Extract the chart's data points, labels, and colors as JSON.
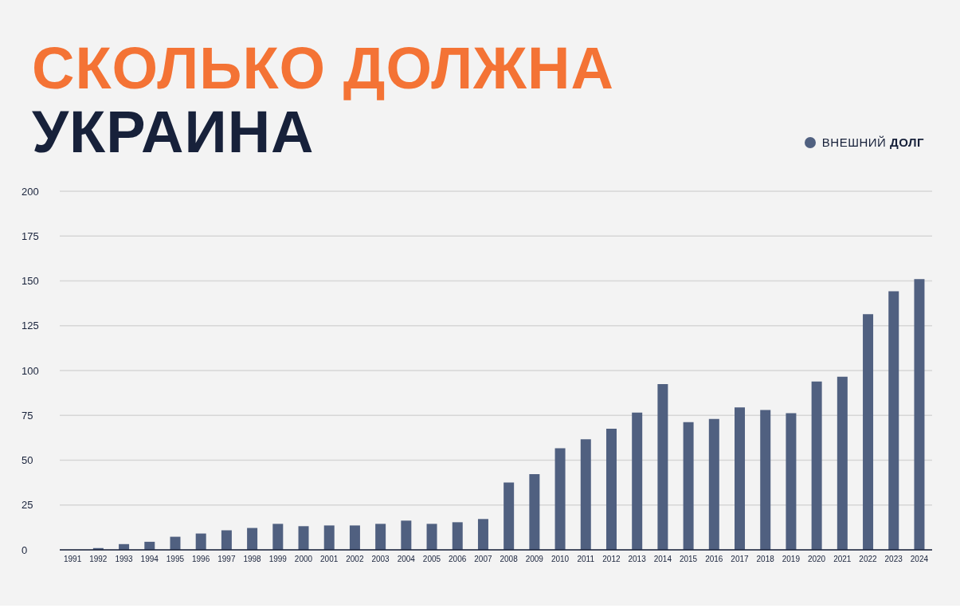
{
  "chart_data": {
    "type": "bar",
    "title": "СКОЛЬКО ДОЛЖНА",
    "subtitle": "УКРАИНА",
    "categories": [
      "1991",
      "1992",
      "1993",
      "1994",
      "1995",
      "1996",
      "1997",
      "1998",
      "1999",
      "2000",
      "2001",
      "2002",
      "2003",
      "2004",
      "2005",
      "2006",
      "2007",
      "2008",
      "2009",
      "2010",
      "2011",
      "2012",
      "2013",
      "2014",
      "2015",
      "2016",
      "2017",
      "2018",
      "2019",
      "2020",
      "2021",
      "2022",
      "2023",
      "2024"
    ],
    "series": [
      {
        "name": "ВНЕШНИЙ ДОЛГ",
        "color": "#506080",
        "values": [
          0,
          1,
          3.2,
          4.5,
          7.3,
          9.1,
          10.9,
          12.2,
          14.5,
          13.2,
          13.6,
          13.6,
          14.5,
          16.3,
          14.5,
          15.4,
          17.2,
          37.6,
          42.2,
          56.7,
          61.7,
          67.6,
          76.6,
          92.5,
          71.2,
          73,
          79.4,
          78,
          76.2,
          93.9,
          96.6,
          131.5,
          144.2,
          151
        ]
      }
    ],
    "ylim": [
      0,
      200
    ],
    "yticks": [
      0,
      25,
      50,
      75,
      100,
      125,
      150,
      175,
      200
    ],
    "grid": "y",
    "legend": "top right"
  }
}
